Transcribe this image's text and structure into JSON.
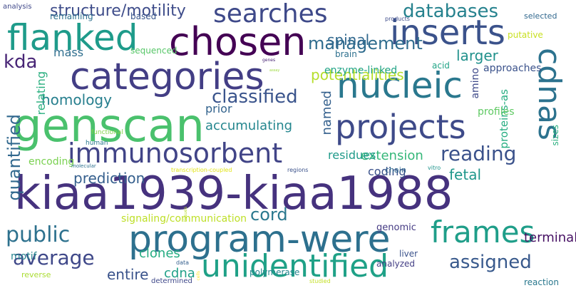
{
  "words": [
    {
      "text": "kiaa1939-kiaa1988",
      "color": "#46327e"
    },
    {
      "text": "genscan",
      "color": "#4ac16d"
    },
    {
      "text": "chosen",
      "color": "#440154"
    },
    {
      "text": "categories",
      "color": "#433e85"
    },
    {
      "text": "program-were",
      "color": "#2d708e"
    },
    {
      "text": "unidentified",
      "color": "#1fa187"
    },
    {
      "text": "flanked",
      "color": "#1e9b8a"
    },
    {
      "text": "nucleic",
      "color": "#2a788e"
    },
    {
      "text": "inserts",
      "color": "#3b528b"
    },
    {
      "text": "projects",
      "color": "#3e4a89"
    },
    {
      "text": "immunosorbent",
      "color": "#414487"
    },
    {
      "text": "frames",
      "color": "#1f9e89"
    },
    {
      "text": "searches",
      "color": "#3e4989"
    },
    {
      "text": "cdnas",
      "color": "#2c728e"
    },
    {
      "text": "reading",
      "color": "#3b528b"
    },
    {
      "text": "public",
      "color": "#2d718e"
    },
    {
      "text": "classified",
      "color": "#3a548c"
    },
    {
      "text": "average",
      "color": "#3f4889"
    },
    {
      "text": "assigned",
      "color": "#38598c"
    },
    {
      "text": "kda",
      "color": "#482576"
    },
    {
      "text": "management",
      "color": "#2f6c8e"
    },
    {
      "text": "databases",
      "color": "#26828e"
    },
    {
      "text": "structure/motility",
      "color": "#3e4c8a"
    },
    {
      "text": "quantified",
      "color": "#31688e"
    },
    {
      "text": "potentialities",
      "color": "#b5de2b"
    },
    {
      "text": "prediction",
      "color": "#355f8d"
    },
    {
      "text": "homology",
      "color": "#277f8e"
    },
    {
      "text": "larger",
      "color": "#21918c"
    },
    {
      "text": "cord",
      "color": "#2a788e"
    },
    {
      "text": "entire",
      "color": "#3a538b"
    },
    {
      "text": "prior",
      "color": "#33638d"
    },
    {
      "text": "accumulating",
      "color": "#24868e"
    },
    {
      "text": "extension",
      "color": "#35b779"
    },
    {
      "text": "spinal",
      "color": "#31688e"
    },
    {
      "text": "terminal",
      "color": "#471164"
    },
    {
      "text": "named",
      "color": "#34608d"
    },
    {
      "text": "mass",
      "color": "#2e6e8e"
    },
    {
      "text": "coding",
      "color": "#3b528b"
    },
    {
      "text": "clones",
      "color": "#25ac82"
    },
    {
      "text": "cdna",
      "color": "#1fa088"
    },
    {
      "text": "relating",
      "color": "#29af7f"
    },
    {
      "text": "fetal",
      "color": "#1f978b"
    },
    {
      "text": "enzyme-linked",
      "color": "#20a386"
    },
    {
      "text": "approaches",
      "color": "#3b528b"
    },
    {
      "text": "residues",
      "color": "#1f9a8a"
    },
    {
      "text": "reaction",
      "color": "#2a788e"
    },
    {
      "text": "amino",
      "color": "#3e4989"
    },
    {
      "text": "proteins-as",
      "color": "#26ad81"
    },
    {
      "text": "profiles",
      "color": "#5ec962"
    },
    {
      "text": "signaling/communication",
      "color": "#bddf26"
    },
    {
      "text": "polymerase",
      "color": "#25858e"
    },
    {
      "text": "encoding",
      "color": "#7ad151"
    },
    {
      "text": "motif",
      "color": "#25858e"
    },
    {
      "text": "remaining",
      "color": "#2d708e"
    },
    {
      "text": "sequenced",
      "color": "#56c667"
    },
    {
      "text": "based",
      "color": "#39568c"
    },
    {
      "text": "genomic",
      "color": "#443a83"
    },
    {
      "text": "putative",
      "color": "#c8e020"
    },
    {
      "text": "reverse",
      "color": "#aadc32"
    },
    {
      "text": "brain",
      "color": "#2d708e"
    },
    {
      "text": "acid",
      "color": "#20a486"
    },
    {
      "text": "sizes",
      "color": "#2ab07f"
    },
    {
      "text": "chain",
      "color": "#31688e"
    },
    {
      "text": "liver",
      "color": "#3b528b"
    },
    {
      "text": "analyzed",
      "color": "#433e85"
    },
    {
      "text": "determined",
      "color": "#3f4889"
    },
    {
      "text": "selected",
      "color": "#31688e"
    },
    {
      "text": "analysis",
      "color": "#3f4889"
    },
    {
      "text": "data",
      "color": "#355f8d"
    },
    {
      "text": "transcription-coupled",
      "color": "#e2e418"
    },
    {
      "text": "regions",
      "color": "#3b528b"
    },
    {
      "text": "vitro",
      "color": "#1f948c"
    },
    {
      "text": "studied",
      "color": "#c2df23"
    },
    {
      "text": "products",
      "color": "#3e4c8a"
    },
    {
      "text": "human",
      "color": "#2a788e"
    },
    {
      "text": "functional",
      "color": "#84d44b"
    },
    {
      "text": "molecular",
      "color": "#2d708e"
    },
    {
      "text": "genes",
      "color": "#482475"
    },
    {
      "text": "assay",
      "color": "#9bd93c"
    },
    {
      "text": "cells",
      "color": "#fde725"
    },
    {
      "text": "tissues",
      "color": "#b8de29"
    }
  ]
}
